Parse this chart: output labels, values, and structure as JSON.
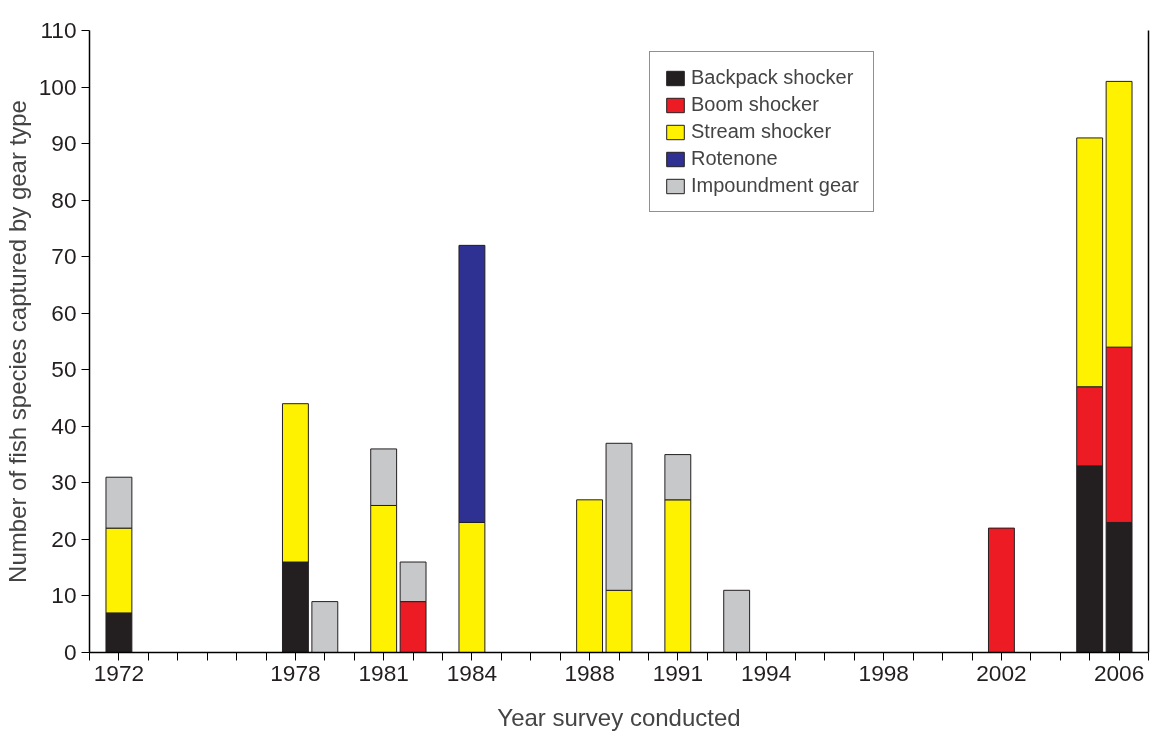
{
  "chart_data": {
    "type": "bar",
    "stacked": true,
    "xlabel": "Year survey conducted",
    "ylabel": "Number of fish species captured by gear type",
    "x": [
      1972,
      1978,
      1979,
      1981,
      1982,
      1984,
      1988,
      1989,
      1991,
      1993,
      2002,
      2005,
      2006
    ],
    "series": [
      {
        "name": "Backpack shocker",
        "color": "#231f20",
        "values": [
          7,
          16,
          null,
          null,
          null,
          null,
          null,
          null,
          null,
          null,
          null,
          33,
          23
        ]
      },
      {
        "name": "Boom shocker",
        "color": "#ed1c24",
        "values": [
          null,
          null,
          null,
          null,
          9,
          null,
          null,
          null,
          null,
          null,
          22,
          14,
          31
        ]
      },
      {
        "name": "Stream shocker",
        "color": "#fff200",
        "values": [
          15,
          28,
          null,
          26,
          null,
          23,
          27,
          11,
          27,
          null,
          null,
          44,
          47
        ]
      },
      {
        "name": "Rotenone",
        "color": "#2e3192",
        "values": [
          null,
          null,
          null,
          null,
          null,
          49,
          null,
          null,
          null,
          null,
          null,
          null,
          null
        ]
      },
      {
        "name": "Impoundment gear",
        "color": "#c7c8ca",
        "values": [
          9,
          null,
          9,
          10,
          7,
          null,
          null,
          26,
          8,
          11,
          null,
          null,
          null
        ]
      }
    ],
    "xlim": [
      1971,
      2007
    ],
    "xticks": [
      {
        "value": 1971,
        "label": null
      },
      1972,
      {
        "value": 1973,
        "label": null
      },
      {
        "value": 1974,
        "label": null
      },
      {
        "value": 1975,
        "label": null
      },
      {
        "value": 1976,
        "label": null
      },
      {
        "value": 1977,
        "label": null
      },
      1978,
      {
        "value": 1979,
        "label": null
      },
      {
        "value": 1980,
        "label": null
      },
      1981,
      {
        "value": 1982,
        "label": null
      },
      {
        "value": 1983,
        "label": null
      },
      1984,
      {
        "value": 1985,
        "label": null
      },
      {
        "value": 1986,
        "label": null
      },
      {
        "value": 1987,
        "label": null
      },
      1988,
      {
        "value": 1989,
        "label": null
      },
      {
        "value": 1990,
        "label": null
      },
      1991,
      {
        "value": 1992,
        "label": null
      },
      {
        "value": 1993,
        "label": null
      },
      1994,
      {
        "value": 1995,
        "label": null
      },
      {
        "value": 1996,
        "label": null
      },
      {
        "value": 1997,
        "label": null
      },
      1998,
      {
        "value": 1999,
        "label": null
      },
      {
        "value": 2000,
        "label": null
      },
      {
        "value": 2001,
        "label": null
      },
      2002,
      {
        "value": 2003,
        "label": null
      },
      {
        "value": 2004,
        "label": null
      },
      {
        "value": 2005,
        "label": null
      },
      2006,
      {
        "value": 2007,
        "label": null
      }
    ],
    "ylim": [
      0,
      110
    ],
    "yticks": [
      0,
      10,
      20,
      30,
      40,
      50,
      60,
      70,
      80,
      90,
      100,
      110
    ],
    "grid": false,
    "legend": "top right"
  }
}
